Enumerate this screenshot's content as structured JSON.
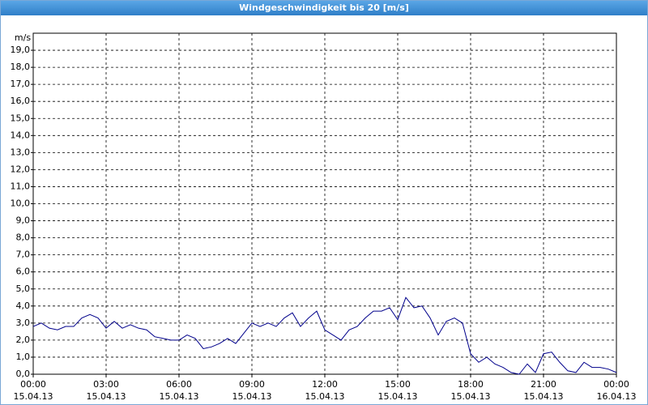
{
  "chart_data": {
    "type": "line",
    "title": "Windgeschwindigkeit bis 20 [m/s]",
    "y_label": "m/s",
    "grid": true,
    "x": [
      "2013-04-15T00:00",
      "2013-04-15T00:20",
      "2013-04-15T00:40",
      "2013-04-15T01:00",
      "2013-04-15T01:20",
      "2013-04-15T01:40",
      "2013-04-15T02:00",
      "2013-04-15T02:20",
      "2013-04-15T02:40",
      "2013-04-15T03:00",
      "2013-04-15T03:20",
      "2013-04-15T03:40",
      "2013-04-15T04:00",
      "2013-04-15T04:20",
      "2013-04-15T04:40",
      "2013-04-15T05:00",
      "2013-04-15T05:20",
      "2013-04-15T05:40",
      "2013-04-15T06:00",
      "2013-04-15T06:20",
      "2013-04-15T06:40",
      "2013-04-15T07:00",
      "2013-04-15T07:20",
      "2013-04-15T07:40",
      "2013-04-15T08:00",
      "2013-04-15T08:20",
      "2013-04-15T08:40",
      "2013-04-15T09:00",
      "2013-04-15T09:20",
      "2013-04-15T09:40",
      "2013-04-15T10:00",
      "2013-04-15T10:20",
      "2013-04-15T10:40",
      "2013-04-15T11:00",
      "2013-04-15T11:20",
      "2013-04-15T11:40",
      "2013-04-15T12:00",
      "2013-04-15T12:20",
      "2013-04-15T12:40",
      "2013-04-15T13:00",
      "2013-04-15T13:20",
      "2013-04-15T13:40",
      "2013-04-15T14:00",
      "2013-04-15T14:20",
      "2013-04-15T14:40",
      "2013-04-15T15:00",
      "2013-04-15T15:20",
      "2013-04-15T15:40",
      "2013-04-15T16:00",
      "2013-04-15T16:20",
      "2013-04-15T16:40",
      "2013-04-15T17:00",
      "2013-04-15T17:20",
      "2013-04-15T17:40",
      "2013-04-15T18:00",
      "2013-04-15T18:20",
      "2013-04-15T18:40",
      "2013-04-15T19:00",
      "2013-04-15T19:20",
      "2013-04-15T19:40",
      "2013-04-15T20:00",
      "2013-04-15T20:20",
      "2013-04-15T20:40",
      "2013-04-15T21:00",
      "2013-04-15T21:20",
      "2013-04-15T21:40",
      "2013-04-15T22:00",
      "2013-04-15T22:20",
      "2013-04-15T22:40",
      "2013-04-15T23:00",
      "2013-04-15T23:20",
      "2013-04-15T23:40",
      "2013-04-16T00:00"
    ],
    "series": [
      {
        "name": "Windgeschwindigkeit",
        "color": "#00008b",
        "values": [
          2.8,
          3.0,
          2.7,
          2.6,
          2.8,
          2.8,
          3.3,
          3.5,
          3.3,
          2.7,
          3.1,
          2.7,
          2.9,
          2.7,
          2.6,
          2.2,
          2.1,
          2.0,
          2.0,
          2.3,
          2.1,
          1.5,
          1.6,
          1.8,
          2.1,
          1.8,
          2.4,
          3.0,
          2.8,
          3.0,
          2.8,
          3.3,
          3.6,
          2.8,
          3.3,
          3.7,
          2.6,
          2.3,
          2.0,
          2.6,
          2.8,
          3.3,
          3.7,
          3.7,
          3.9,
          3.2,
          4.5,
          3.9,
          4.0,
          3.3,
          2.3,
          3.1,
          3.3,
          3.0,
          1.2,
          0.7,
          1.0,
          0.6,
          0.4,
          0.1,
          0.0,
          0.6,
          0.1,
          1.2,
          1.3,
          0.7,
          0.2,
          0.1,
          0.7,
          0.4,
          0.4,
          0.3,
          0.1
        ]
      }
    ],
    "xlim": [
      "2013-04-15T00:00",
      "2013-04-16T00:00"
    ],
    "xticks": [
      {
        "value": "2013-04-15T00:00",
        "label": "00:00",
        "date": "15.04.13"
      },
      {
        "value": "2013-04-15T03:00",
        "label": "03:00",
        "date": "15.04.13"
      },
      {
        "value": "2013-04-15T06:00",
        "label": "06:00",
        "date": "15.04.13"
      },
      {
        "value": "2013-04-15T09:00",
        "label": "09:00",
        "date": "15.04.13"
      },
      {
        "value": "2013-04-15T12:00",
        "label": "12:00",
        "date": "15.04.13"
      },
      {
        "value": "2013-04-15T15:00",
        "label": "15:00",
        "date": "15.04.13"
      },
      {
        "value": "2013-04-15T18:00",
        "label": "18:00",
        "date": "15.04.13"
      },
      {
        "value": "2013-04-15T21:00",
        "label": "21:00",
        "date": "15.04.13"
      },
      {
        "value": "2013-04-16T00:00",
        "label": "00:00",
        "date": "16.04.13"
      }
    ],
    "ylim": [
      0,
      20
    ],
    "yticks": [
      {
        "value": 0,
        "label": "0,0"
      },
      {
        "value": 1,
        "label": "1,0"
      },
      {
        "value": 2,
        "label": "2,0"
      },
      {
        "value": 3,
        "label": "3,0"
      },
      {
        "value": 4,
        "label": "4,0"
      },
      {
        "value": 5,
        "label": "5,0"
      },
      {
        "value": 6,
        "label": "6,0"
      },
      {
        "value": 7,
        "label": "7,0"
      },
      {
        "value": 8,
        "label": "8,0"
      },
      {
        "value": 9,
        "label": "9,0"
      },
      {
        "value": 10,
        "label": "10,0"
      },
      {
        "value": 11,
        "label": "11,0"
      },
      {
        "value": 12,
        "label": "12,0"
      },
      {
        "value": 13,
        "label": "13,0"
      },
      {
        "value": 14,
        "label": "14,0"
      },
      {
        "value": 15,
        "label": "15,0"
      },
      {
        "value": 16,
        "label": "16,0"
      },
      {
        "value": 17,
        "label": "17,0"
      },
      {
        "value": 18,
        "label": "18,0"
      },
      {
        "value": 19,
        "label": "19,0"
      }
    ]
  }
}
